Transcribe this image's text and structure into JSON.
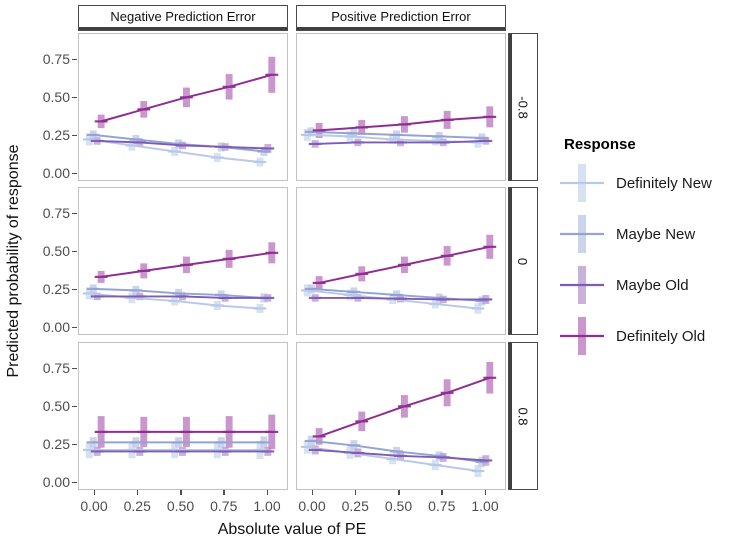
{
  "chart_data": {
    "type": "line",
    "title": "",
    "xlabel": "Absolute value of PE",
    "ylabel": "Predicted probability of response",
    "x": [
      0,
      0.25,
      0.5,
      0.75,
      1
    ],
    "x_tick_labels": [
      "0.00",
      "0.25",
      "0.50",
      "0.75",
      "1.00"
    ],
    "y_tick_labels": [
      "0.00",
      "0.25",
      "0.50",
      "0.75"
    ],
    "y_tick_values": [
      0,
      0.25,
      0.5,
      0.75
    ],
    "ylim": [
      -0.05,
      0.92
    ],
    "grid": "off",
    "facets": {
      "col_labels": [
        "Negative Prediction Error",
        "Positive Prediction Error"
      ],
      "row_labels": [
        "-0.8",
        "0",
        "0.8"
      ]
    },
    "legend": {
      "title": "Response",
      "position": "right",
      "entries": [
        {
          "label": "Definitely New"
        },
        {
          "label": "Maybe New"
        },
        {
          "label": "Maybe Old"
        },
        {
          "label": "Definitely Old"
        }
      ]
    },
    "series_meta": [
      {
        "name": "Definitely New",
        "line_color": "#b7c9e7",
        "band_color": "#cfdcf0"
      },
      {
        "name": "Maybe New",
        "line_color": "#93a3d4",
        "band_color": "#c3cce9"
      },
      {
        "name": "Maybe Old",
        "line_color": "#7e5cb5",
        "band_color": "#bfa3d6"
      },
      {
        "name": "Definitely Old",
        "line_color": "#8f2d90",
        "band_color": "#c184c4"
      }
    ],
    "panels": [
      {
        "col": "Negative Prediction Error",
        "row": "-0.8",
        "series": [
          {
            "name": "Definitely New",
            "values": [
              0.22,
              0.18,
              0.14,
              0.1,
              0.07
            ],
            "err": [
              0.04,
              0.035,
              0.03,
              0.03,
              0.03
            ]
          },
          {
            "name": "Maybe New",
            "values": [
              0.25,
              0.22,
              0.19,
              0.17,
              0.14
            ],
            "err": [
              0.03,
              0.03,
              0.03,
              0.03,
              0.03
            ]
          },
          {
            "name": "Maybe Old",
            "values": [
              0.21,
              0.2,
              0.18,
              0.17,
              0.16
            ],
            "err": [
              0.025,
              0.025,
              0.025,
              0.025,
              0.03
            ]
          },
          {
            "name": "Definitely Old",
            "values": [
              0.34,
              0.42,
              0.5,
              0.57,
              0.65
            ],
            "err": [
              0.045,
              0.055,
              0.065,
              0.085,
              0.12
            ]
          }
        ]
      },
      {
        "col": "Positive Prediction Error",
        "row": "-0.8",
        "series": [
          {
            "name": "Definitely New",
            "values": [
              0.25,
              0.24,
              0.22,
              0.21,
              0.2
            ],
            "err": [
              0.04,
              0.035,
              0.03,
              0.03,
              0.035
            ]
          },
          {
            "name": "Maybe New",
            "values": [
              0.27,
              0.26,
              0.25,
              0.24,
              0.23
            ],
            "err": [
              0.03,
              0.03,
              0.03,
              0.03,
              0.03
            ]
          },
          {
            "name": "Maybe Old",
            "values": [
              0.19,
              0.2,
              0.2,
              0.2,
              0.21
            ],
            "err": [
              0.025,
              0.025,
              0.025,
              0.025,
              0.025
            ]
          },
          {
            "name": "Definitely Old",
            "values": [
              0.28,
              0.3,
              0.32,
              0.35,
              0.37
            ],
            "err": [
              0.05,
              0.05,
              0.055,
              0.06,
              0.07
            ]
          }
        ]
      },
      {
        "col": "Negative Prediction Error",
        "row": "0",
        "series": [
          {
            "name": "Definitely New",
            "values": [
              0.22,
              0.19,
              0.17,
              0.14,
              0.12
            ],
            "err": [
              0.04,
              0.035,
              0.03,
              0.03,
              0.03
            ]
          },
          {
            "name": "Maybe New",
            "values": [
              0.25,
              0.24,
              0.22,
              0.21,
              0.19
            ],
            "err": [
              0.03,
              0.03,
              0.03,
              0.03,
              0.03
            ]
          },
          {
            "name": "Maybe Old",
            "values": [
              0.2,
              0.2,
              0.2,
              0.19,
              0.19
            ],
            "err": [
              0.025,
              0.025,
              0.025,
              0.025,
              0.025
            ]
          },
          {
            "name": "Definitely Old",
            "values": [
              0.33,
              0.37,
              0.41,
              0.45,
              0.49
            ],
            "err": [
              0.04,
              0.05,
              0.055,
              0.06,
              0.07
            ]
          }
        ]
      },
      {
        "col": "Positive Prediction Error",
        "row": "0",
        "series": [
          {
            "name": "Definitely New",
            "values": [
              0.24,
              0.21,
              0.18,
              0.15,
              0.12
            ],
            "err": [
              0.04,
              0.035,
              0.03,
              0.03,
              0.035
            ]
          },
          {
            "name": "Maybe New",
            "values": [
              0.25,
              0.23,
              0.21,
              0.19,
              0.17
            ],
            "err": [
              0.03,
              0.03,
              0.03,
              0.03,
              0.03
            ]
          },
          {
            "name": "Maybe Old",
            "values": [
              0.19,
              0.19,
              0.185,
              0.18,
              0.18
            ],
            "err": [
              0.025,
              0.025,
              0.025,
              0.025,
              0.03
            ]
          },
          {
            "name": "Definitely Old",
            "values": [
              0.29,
              0.35,
              0.41,
              0.47,
              0.53
            ],
            "err": [
              0.045,
              0.05,
              0.055,
              0.065,
              0.08
            ]
          }
        ]
      },
      {
        "col": "Negative Prediction Error",
        "row": "0.8",
        "series": [
          {
            "name": "Definitely New",
            "values": [
              0.21,
              0.21,
              0.21,
              0.21,
              0.21
            ],
            "err": [
              0.055,
              0.055,
              0.055,
              0.055,
              0.06
            ]
          },
          {
            "name": "Maybe New",
            "values": [
              0.26,
              0.26,
              0.26,
              0.26,
              0.26
            ],
            "err": [
              0.035,
              0.035,
              0.035,
              0.035,
              0.04
            ]
          },
          {
            "name": "Maybe Old",
            "values": [
              0.2,
              0.2,
              0.2,
              0.2,
              0.2
            ],
            "err": [
              0.03,
              0.03,
              0.03,
              0.03,
              0.03
            ]
          },
          {
            "name": "Definitely Old",
            "values": [
              0.33,
              0.33,
              0.33,
              0.33,
              0.33
            ],
            "err": [
              0.105,
              0.1,
              0.1,
              0.105,
              0.115
            ]
          }
        ]
      },
      {
        "col": "Positive Prediction Error",
        "row": "0.8",
        "series": [
          {
            "name": "Definitely New",
            "values": [
              0.23,
              0.19,
              0.15,
              0.11,
              0.07
            ],
            "err": [
              0.045,
              0.04,
              0.035,
              0.035,
              0.04
            ]
          },
          {
            "name": "Maybe New",
            "values": [
              0.27,
              0.24,
              0.2,
              0.17,
              0.13
            ],
            "err": [
              0.035,
              0.035,
              0.03,
              0.03,
              0.035
            ]
          },
          {
            "name": "Maybe Old",
            "values": [
              0.21,
              0.19,
              0.17,
              0.16,
              0.14
            ],
            "err": [
              0.03,
              0.03,
              0.03,
              0.03,
              0.035
            ]
          },
          {
            "name": "Definitely Old",
            "values": [
              0.3,
              0.4,
              0.5,
              0.59,
              0.69
            ],
            "err": [
              0.055,
              0.065,
              0.075,
              0.09,
              0.105
            ]
          }
        ]
      }
    ]
  }
}
